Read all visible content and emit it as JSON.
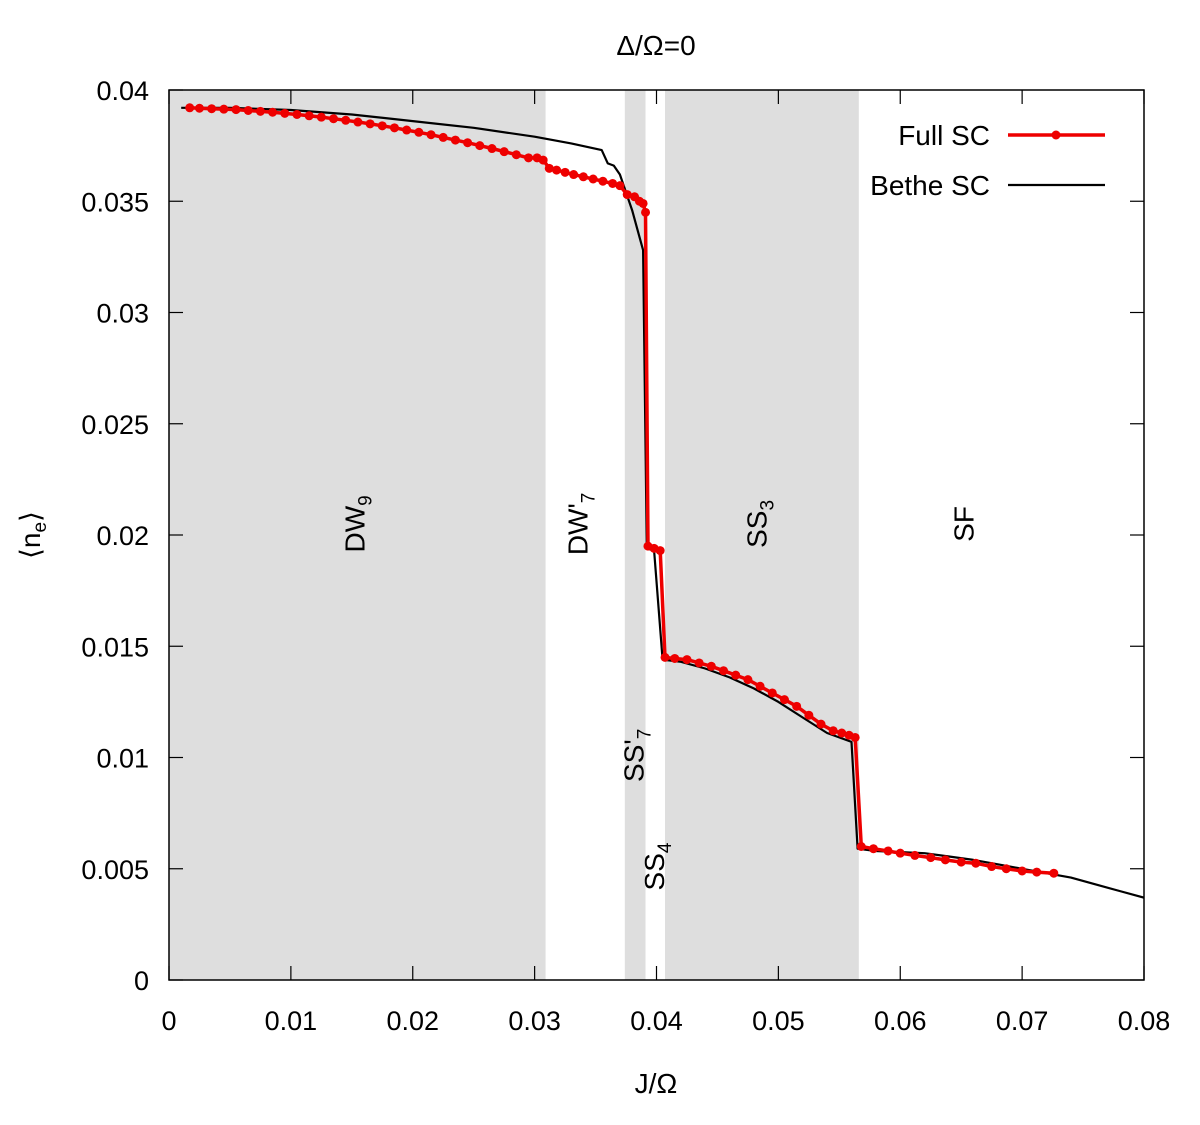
{
  "chart_data": {
    "type": "line",
    "title": "Δ/Ω=0",
    "xlabel": "J/Ω",
    "ylabel_main": "⟨n",
    "ylabel_sub": "e",
    "ylabel_close": "⟩",
    "xlim": [
      0,
      0.08
    ],
    "ylim": [
      0,
      0.04
    ],
    "xticks": [
      0,
      0.01,
      0.02,
      0.03,
      0.04,
      0.05,
      0.06,
      0.07,
      0.08
    ],
    "xtick_labels": [
      "0",
      "0.01",
      "0.02",
      "0.03",
      "0.04",
      "0.05",
      "0.06",
      "0.07",
      "0.08"
    ],
    "yticks": [
      0,
      0.005,
      0.01,
      0.015,
      0.02,
      0.025,
      0.03,
      0.035,
      0.04
    ],
    "ytick_labels": [
      "0",
      "0.005",
      "0.01",
      "0.015",
      "0.02",
      "0.025",
      "0.03",
      "0.035",
      "0.04"
    ],
    "grid": false,
    "legend_position": "top-right",
    "shaded_regions": [
      {
        "x0": 0.0,
        "x1": 0.0309
      },
      {
        "x0": 0.0374,
        "x1": 0.0391
      },
      {
        "x0": 0.0407,
        "x1": 0.0566
      }
    ],
    "region_labels": [
      {
        "main": "DW",
        "sub": "9",
        "x": 0.0152,
        "y": 0.0205
      },
      {
        "main": "DW'",
        "sub": "7",
        "x": 0.0335,
        "y": 0.0205
      },
      {
        "main": "SS",
        "sub": "3",
        "x": 0.0482,
        "y": 0.0205
      },
      {
        "main": "SF",
        "sub": "",
        "x": 0.0652,
        "y": 0.0205
      },
      {
        "main": "SS'",
        "sub": "7",
        "x": 0.0381,
        "y": 0.0101
      },
      {
        "main": "SS",
        "sub": "4",
        "x": 0.0398,
        "y": 0.0051
      }
    ],
    "series": [
      {
        "name": "Full SC",
        "color": "#ee0000",
        "marker": "circle",
        "x": [
          0.0017,
          0.0025,
          0.0035,
          0.0045,
          0.0055,
          0.0065,
          0.0075,
          0.0085,
          0.0095,
          0.0105,
          0.0115,
          0.0125,
          0.0135,
          0.0145,
          0.0155,
          0.0165,
          0.0175,
          0.0185,
          0.0195,
          0.0205,
          0.0215,
          0.0225,
          0.0235,
          0.0245,
          0.0255,
          0.0265,
          0.0275,
          0.0285,
          0.0295,
          0.0302,
          0.0307,
          0.0312,
          0.0318,
          0.0325,
          0.0332,
          0.034,
          0.0348,
          0.0356,
          0.0364,
          0.037,
          0.0376,
          0.0382,
          0.0386,
          0.0389,
          0.0391,
          0.0393,
          0.0398,
          0.0403,
          0.0407,
          0.0415,
          0.0425,
          0.0435,
          0.0445,
          0.0455,
          0.0465,
          0.0475,
          0.0485,
          0.0495,
          0.0505,
          0.0515,
          0.0525,
          0.0535,
          0.0545,
          0.0552,
          0.0558,
          0.0563,
          0.0568,
          0.0578,
          0.059,
          0.06,
          0.0612,
          0.0625,
          0.0637,
          0.065,
          0.0662,
          0.0675,
          0.0687,
          0.07,
          0.0712,
          0.0726
        ],
        "values": [
          0.0392,
          0.03918,
          0.03916,
          0.03914,
          0.03912,
          0.03908,
          0.03904,
          0.039,
          0.03895,
          0.0389,
          0.03884,
          0.03878,
          0.03871,
          0.03864,
          0.03856,
          0.03848,
          0.03839,
          0.0383,
          0.0382,
          0.0381,
          0.03799,
          0.03787,
          0.03775,
          0.03763,
          0.0375,
          0.03737,
          0.03723,
          0.03709,
          0.03695,
          0.03695,
          0.03685,
          0.03648,
          0.0364,
          0.0363,
          0.0362,
          0.0361,
          0.036,
          0.0359,
          0.0358,
          0.0357,
          0.0353,
          0.0352,
          0.035,
          0.0349,
          0.0345,
          0.0195,
          0.0194,
          0.0193,
          0.0145,
          0.01445,
          0.0144,
          0.01425,
          0.0141,
          0.0139,
          0.0137,
          0.0135,
          0.0132,
          0.0129,
          0.0126,
          0.0123,
          0.0119,
          0.0115,
          0.0112,
          0.0111,
          0.011,
          0.0109,
          0.006,
          0.0059,
          0.0058,
          0.0057,
          0.0056,
          0.0055,
          0.0054,
          0.0053,
          0.00525,
          0.0051,
          0.005,
          0.0049,
          0.00485,
          0.0048
        ]
      },
      {
        "name": "Bethe SC",
        "color": "#000000",
        "marker": "none",
        "x": [
          0.001,
          0.005,
          0.01,
          0.015,
          0.02,
          0.025,
          0.03,
          0.033,
          0.0355,
          0.036,
          0.0365,
          0.037,
          0.038,
          0.0389,
          0.0392,
          0.0398,
          0.0405,
          0.042,
          0.044,
          0.046,
          0.048,
          0.05,
          0.052,
          0.054,
          0.056,
          0.0565,
          0.058,
          0.06,
          0.062,
          0.064,
          0.066,
          0.068,
          0.07,
          0.072,
          0.074,
          0.076,
          0.078,
          0.08
        ],
        "values": [
          0.0392,
          0.0392,
          0.0391,
          0.0389,
          0.0386,
          0.0383,
          0.0379,
          0.0376,
          0.0373,
          0.0367,
          0.0366,
          0.0362,
          0.0346,
          0.0328,
          0.0194,
          0.0193,
          0.0144,
          0.0143,
          0.014,
          0.0136,
          0.0131,
          0.0125,
          0.0118,
          0.0111,
          0.0107,
          0.0059,
          0.0058,
          0.00575,
          0.0057,
          0.00555,
          0.0054,
          0.0052,
          0.005,
          0.0048,
          0.0046,
          0.0043,
          0.004,
          0.0037
        ]
      }
    ]
  }
}
